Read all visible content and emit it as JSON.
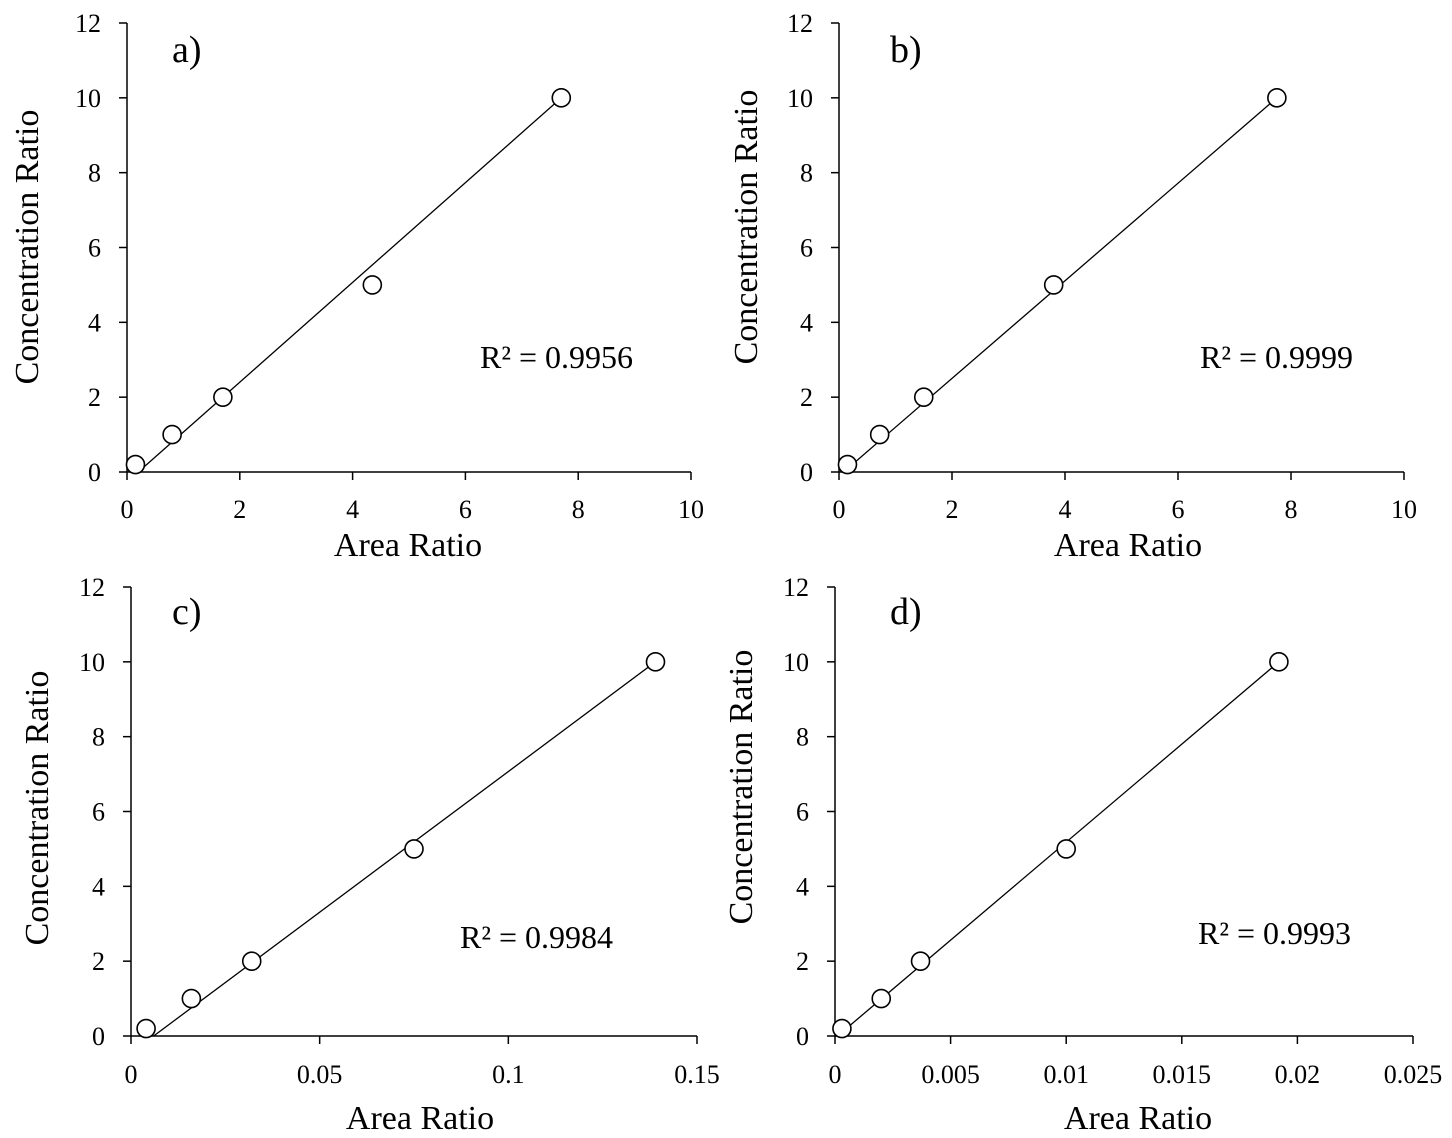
{
  "chart_data": [
    {
      "type": "scatter",
      "panel_label": "a)",
      "xlabel": "Area Ratio",
      "ylabel": "Concentration Ratio",
      "xlim": [
        0,
        10
      ],
      "ylim": [
        0,
        12
      ],
      "xticks": [
        0,
        2,
        4,
        6,
        8,
        10
      ],
      "xtick_labels": [
        "0",
        "2",
        "4",
        "6",
        "8",
        "10"
      ],
      "yticks": [
        0,
        2,
        4,
        6,
        8,
        10,
        12
      ],
      "ytick_labels": [
        "0",
        "2",
        "4",
        "6",
        "8",
        "10",
        "12"
      ],
      "points": [
        {
          "x": 0.15,
          "y": 0.2
        },
        {
          "x": 0.8,
          "y": 1
        },
        {
          "x": 1.7,
          "y": 2
        },
        {
          "x": 4.35,
          "y": 5
        },
        {
          "x": 7.7,
          "y": 10
        }
      ],
      "trendline": {
        "x": [
          0.2,
          7.7
        ],
        "y": [
          0.0,
          10.0
        ]
      },
      "annotation": "R² = 0.9956",
      "grid": false
    },
    {
      "type": "scatter",
      "panel_label": "b)",
      "xlabel": "Area Ratio",
      "ylabel": "Concentration Ratio",
      "xlim": [
        0,
        10
      ],
      "ylim": [
        0,
        12
      ],
      "xticks": [
        0,
        2,
        4,
        6,
        8,
        10
      ],
      "xtick_labels": [
        "0",
        "2",
        "4",
        "6",
        "8",
        "10"
      ],
      "yticks": [
        0,
        2,
        4,
        6,
        8,
        10,
        12
      ],
      "ytick_labels": [
        "0",
        "2",
        "4",
        "6",
        "8",
        "10",
        "12"
      ],
      "points": [
        {
          "x": 0.15,
          "y": 0.2
        },
        {
          "x": 0.72,
          "y": 1
        },
        {
          "x": 1.5,
          "y": 2
        },
        {
          "x": 3.8,
          "y": 5
        },
        {
          "x": 7.75,
          "y": 10
        }
      ],
      "trendline": {
        "x": [
          0.12,
          7.75
        ],
        "y": [
          0.05,
          10.0
        ]
      },
      "annotation": "R² = 0.9999",
      "grid": false
    },
    {
      "type": "scatter",
      "panel_label": "c)",
      "xlabel": "Area Ratio",
      "ylabel": "Concentration Ratio",
      "xlim": [
        0,
        0.15
      ],
      "ylim": [
        0,
        12
      ],
      "xticks": [
        0,
        0.05,
        0.1,
        0.15
      ],
      "xtick_labels": [
        "0",
        "0.05",
        "0.1",
        "0.15"
      ],
      "yticks": [
        0,
        2,
        4,
        6,
        8,
        10,
        12
      ],
      "ytick_labels": [
        "0",
        "2",
        "4",
        "6",
        "8",
        "10",
        "12"
      ],
      "points": [
        {
          "x": 0.004,
          "y": 0.2
        },
        {
          "x": 0.016,
          "y": 1
        },
        {
          "x": 0.032,
          "y": 2
        },
        {
          "x": 0.075,
          "y": 5
        },
        {
          "x": 0.139,
          "y": 10
        }
      ],
      "trendline": {
        "x": [
          0.006,
          0.139
        ],
        "y": [
          0.0,
          10.0
        ]
      },
      "annotation": "R² = 0.9984",
      "grid": false
    },
    {
      "type": "scatter",
      "panel_label": "d)",
      "xlabel": "Area Ratio",
      "ylabel": "Concentration Ratio",
      "xlim": [
        0,
        0.025
      ],
      "ylim": [
        0,
        12
      ],
      "xticks": [
        0,
        0.005,
        0.01,
        0.015,
        0.02,
        0.025
      ],
      "xtick_labels": [
        "0",
        "0.005",
        "0.01",
        "0.015",
        "0.02",
        "0.025"
      ],
      "yticks": [
        0,
        2,
        4,
        6,
        8,
        10,
        12
      ],
      "ytick_labels": [
        "0",
        "2",
        "4",
        "6",
        "8",
        "10",
        "12"
      ],
      "points": [
        {
          "x": 0.0003,
          "y": 0.2
        },
        {
          "x": 0.002,
          "y": 1
        },
        {
          "x": 0.0037,
          "y": 2
        },
        {
          "x": 0.01,
          "y": 5
        },
        {
          "x": 0.0192,
          "y": 10
        }
      ],
      "trendline": {
        "x": [
          0.0003,
          0.0192
        ],
        "y": [
          0.1,
          10.0
        ]
      },
      "annotation": "R² = 0.9993",
      "grid": false
    }
  ]
}
